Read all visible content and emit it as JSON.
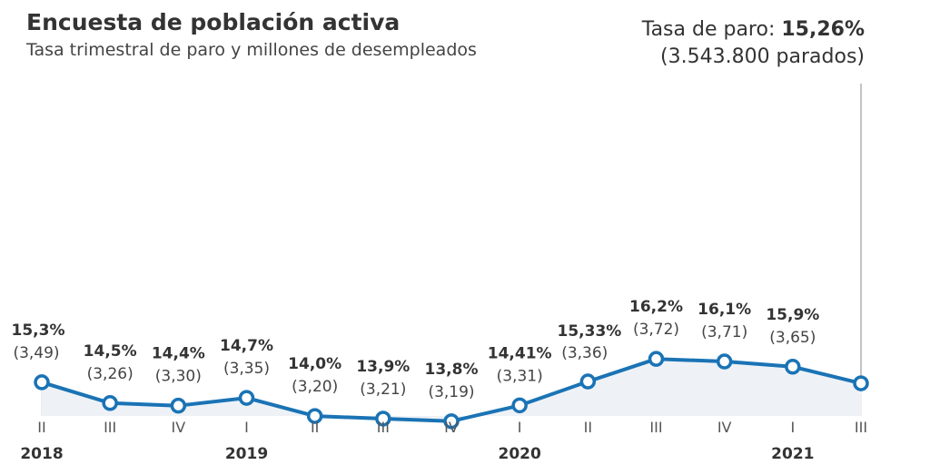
{
  "header": {
    "title": "Encuesta de población activa",
    "subtitle": "Tasa trimestral de paro y millones de desempleados"
  },
  "highlight": {
    "label": "Tasa de paro: ",
    "value": "15,26%",
    "detail": "(3.543.800 parados)"
  },
  "colors": {
    "line": "#1a73b5",
    "area": "#eef2f6",
    "grid": "#dddddd"
  },
  "chart_data": {
    "type": "line",
    "title": "Encuesta de población activa",
    "subtitle": "Tasa trimestral de paro y millones de desempleados",
    "y_unit": "%",
    "ylim": [
      0,
      16.5
    ],
    "categories": [
      "II",
      "III",
      "IV",
      "I",
      "II",
      "III",
      "IV",
      "I",
      "II",
      "III",
      "IV",
      "I",
      "III"
    ],
    "years": [
      {
        "label": "2018",
        "index": 0
      },
      {
        "label": "2019",
        "index": 3
      },
      {
        "label": "2020",
        "index": 7
      },
      {
        "label": "2021",
        "index": 11
      }
    ],
    "series": [
      {
        "values": [
          15.3,
          14.5,
          14.4,
          14.7,
          14.0,
          13.9,
          13.8,
          14.41,
          15.33,
          16.2,
          16.1,
          15.9,
          15.26
        ],
        "value_labels": [
          "15,3%",
          "14,5%",
          "14,4%",
          "14,7%",
          "14,0%",
          "13,9%",
          "13,8%",
          "14,41%",
          "15,33%",
          "16,2%",
          "16,1%",
          "15,9%",
          ""
        ],
        "unemployed_millions": [
          "(3,49)",
          "(3,26)",
          "(3,30)",
          "(3,35)",
          "(3,20)",
          "(3,21)",
          "(3,19)",
          "(3,31)",
          "(3,36)",
          "(3,72)",
          "(3,71)",
          "(3,65)",
          ""
        ]
      }
    ],
    "grid": true
  }
}
